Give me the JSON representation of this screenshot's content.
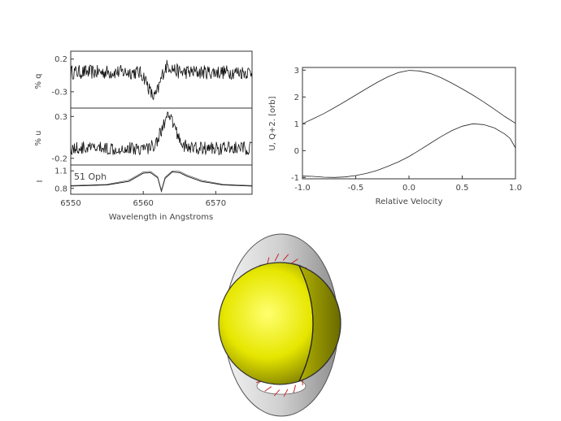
{
  "chart_data": [
    {
      "type": "line",
      "panel": "q",
      "ylabel": "% q",
      "xlim": [
        6550,
        6575
      ],
      "ylim": [
        -0.55,
        0.32
      ],
      "yticks": [
        "0.2",
        "-0.3"
      ],
      "ytick_values": [
        0.2,
        -0.3
      ],
      "baseline": 0.0,
      "feature": {
        "min_at": 6561.5,
        "min": -0.38,
        "max_at": 6563.2,
        "max": 0.12
      }
    },
    {
      "type": "line",
      "panel": "u",
      "ylabel": "% u",
      "xlim": [
        6550,
        6575
      ],
      "ylim": [
        -0.28,
        0.4
      ],
      "yticks": [
        "0.3",
        "-0.2"
      ],
      "ytick_values": [
        0.3,
        -0.2
      ],
      "baseline": -0.08,
      "feature": {
        "peak_at": 6563.5,
        "peak": 0.28
      }
    },
    {
      "type": "line",
      "panel": "I",
      "ylabel": "I",
      "annotation": "51 Oph",
      "xlim": [
        6550,
        6575
      ],
      "ylim": [
        0.7,
        1.2
      ],
      "yticks": [
        "1.1",
        "0.8"
      ],
      "ytick_values": [
        1.1,
        0.8
      ],
      "xticks": [
        "6550",
        "6560",
        "6570"
      ],
      "xtick_values": [
        6550,
        6560,
        6570
      ],
      "xlabel": "Wavelength in Angstroms",
      "series": [
        {
          "x": [
            6550,
            6555,
            6558,
            6560,
            6561,
            6562,
            6562.5,
            6563,
            6564,
            6565,
            6566,
            6568,
            6571,
            6575
          ],
          "y": [
            0.84,
            0.86,
            0.92,
            1.06,
            1.07,
            0.98,
            0.75,
            0.97,
            1.08,
            1.07,
            1.01,
            0.92,
            0.86,
            0.84
          ]
        },
        {
          "x": [
            6550,
            6555,
            6558,
            6560,
            6561,
            6562,
            6562.5,
            6563,
            6564,
            6565,
            6566,
            6568,
            6571,
            6575
          ],
          "y": [
            0.85,
            0.87,
            0.94,
            1.08,
            1.09,
            1.0,
            0.77,
            0.99,
            1.1,
            1.09,
            1.03,
            0.94,
            0.87,
            0.85
          ]
        }
      ]
    },
    {
      "type": "line",
      "panel": "uq",
      "xlabel": "Relative Velocity",
      "ylabel": "U, Q+2. [orb]",
      "xlim": [
        -1.0,
        1.0
      ],
      "ylim": [
        -1.05,
        3.1
      ],
      "xticks": [
        "-1.0",
        "-0.5",
        "0.0",
        "0.5",
        "1.0"
      ],
      "xtick_values": [
        -1.0,
        -0.5,
        0.0,
        0.5,
        1.0
      ],
      "yticks": [
        "-1",
        "0",
        "1",
        "2",
        "3"
      ],
      "ytick_values": [
        -1,
        0,
        1,
        2,
        3
      ],
      "series": [
        {
          "x": [
            -1.0,
            -0.9,
            -0.8,
            -0.7,
            -0.6,
            -0.5,
            -0.4,
            -0.3,
            -0.2,
            -0.1,
            0.0,
            0.1,
            0.2,
            0.3,
            0.4,
            0.5,
            0.6,
            0.7,
            0.8,
            0.9,
            1.0
          ],
          "y": [
            1.0,
            1.19,
            1.38,
            1.6,
            1.83,
            2.07,
            2.31,
            2.54,
            2.75,
            2.91,
            2.99,
            2.97,
            2.88,
            2.72,
            2.52,
            2.3,
            2.07,
            1.82,
            1.55,
            1.27,
            1.02
          ]
        },
        {
          "x": [
            -1.0,
            -0.9,
            -0.8,
            -0.7,
            -0.6,
            -0.5,
            -0.4,
            -0.3,
            -0.2,
            -0.1,
            0.0,
            0.1,
            0.2,
            0.3,
            0.4,
            0.5,
            0.6,
            0.7,
            0.8,
            0.9,
            0.95,
            1.0
          ],
          "y": [
            -0.95,
            -0.96,
            -0.99,
            -1.0,
            -0.98,
            -0.93,
            -0.85,
            -0.74,
            -0.59,
            -0.42,
            -0.22,
            0.02,
            0.27,
            0.52,
            0.74,
            0.91,
            1.0,
            0.97,
            0.85,
            0.62,
            0.45,
            0.1
          ]
        }
      ]
    }
  ],
  "illustration": {
    "star_color": "#e6e600",
    "disk_color": "#d2d2d2",
    "tick_color": "#cc2222"
  }
}
